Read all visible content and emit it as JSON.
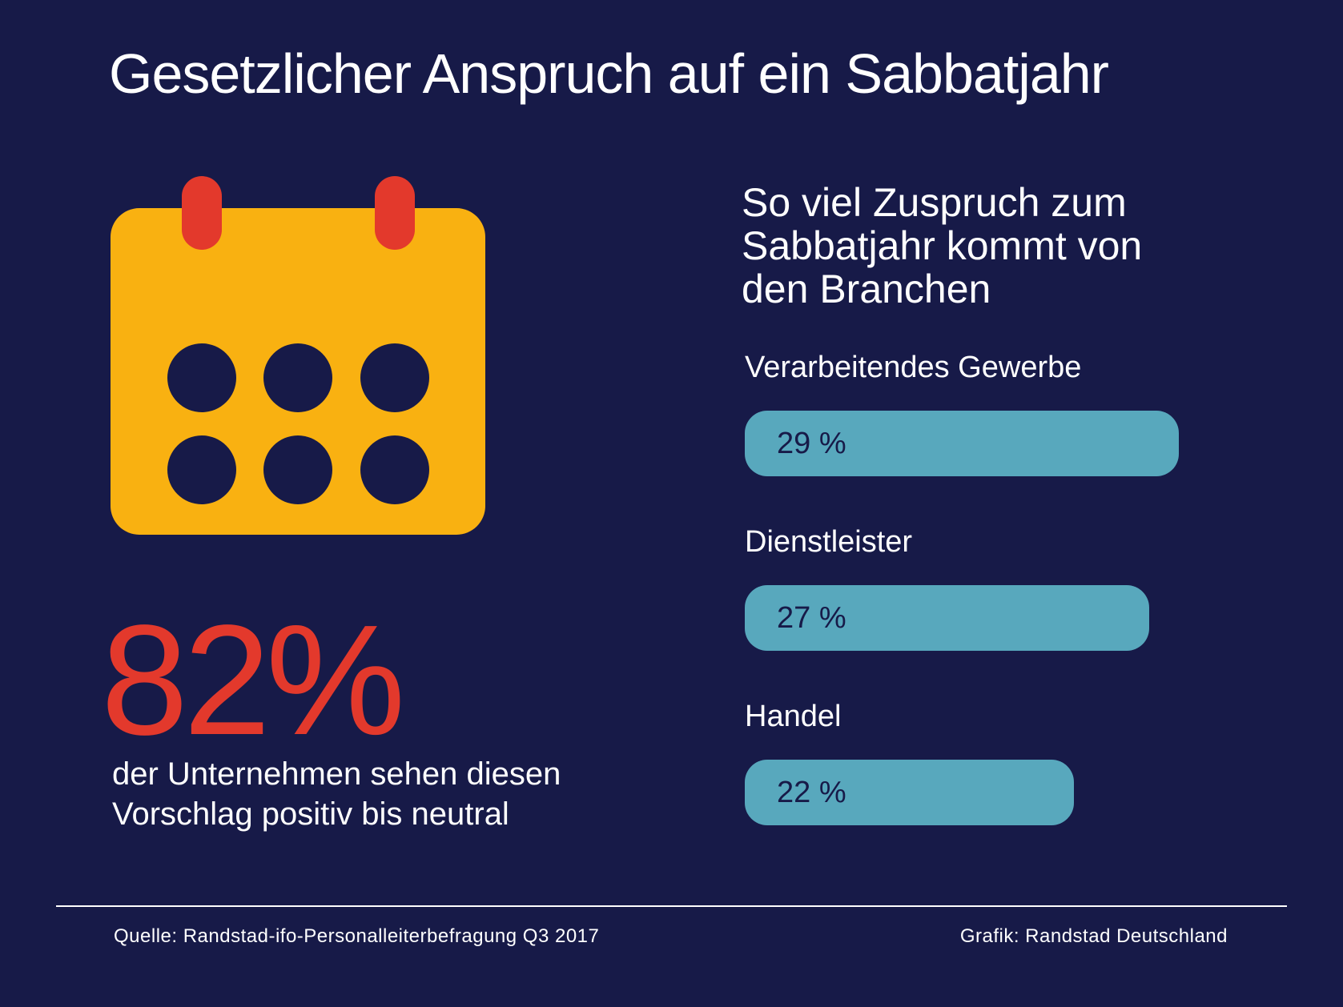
{
  "title": "Gesetzlicher Anspruch auf ein Sabbatjahr",
  "icon": "calendar-icon",
  "colors": {
    "background": "#171a48",
    "calendar": "#f9b111",
    "accent_red": "#e3392c",
    "bar": "#58a8bd",
    "text": "#ffffff"
  },
  "highlight": {
    "value": "82%",
    "description": "der Unternehmen sehen diesen Vorschlag positiv bis neutral"
  },
  "chart_data": {
    "type": "bar",
    "orientation": "horizontal",
    "title": "So viel Zuspruch zum Sabbatjahr kommt von den Branchen",
    "categories": [
      "Verarbeitendes Gewerbe",
      "Dienstleister",
      "Handel"
    ],
    "values": [
      29,
      27,
      22
    ],
    "value_labels": [
      "29 %",
      "27 %",
      "22 %"
    ],
    "unit": "%"
  },
  "footer": {
    "source": "Quelle: Randstad-ifo-Personalleiterbefragung Q3 2017",
    "credit": "Grafik: Randstad Deutschland"
  }
}
